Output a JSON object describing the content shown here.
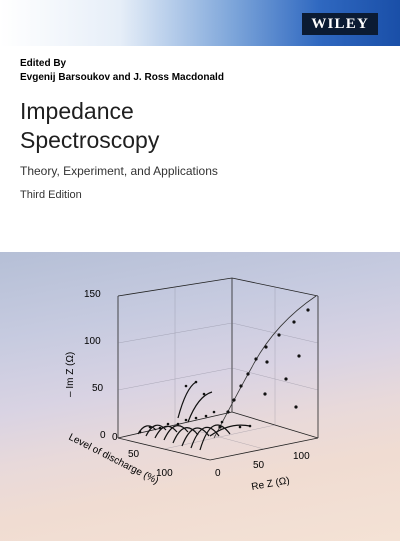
{
  "publisher": {
    "logo_text": "WILEY"
  },
  "editors": {
    "label": "Edited By",
    "names": "Evgenij Barsoukov and J. Ross Macdonald"
  },
  "book": {
    "title_line1": "Impedance",
    "title_line2": "Spectroscopy",
    "subtitle": "Theory, Experiment, and Applications",
    "edition": "Third Edition"
  },
  "colors": {
    "banner_dark": "#1a4fa8",
    "logo_bg": "#0b1b33",
    "title_text": "#1f1f1f"
  },
  "figure": {
    "z_axis_label": "– Im Z (Ω)",
    "x_axis_label": "Re Z (Ω)",
    "y_axis_label": "Level of discharge (%)",
    "z_ticks": [
      "150",
      "100",
      "50",
      "0"
    ],
    "x_ticks": [
      "0",
      "50",
      "100"
    ],
    "y_ticks": [
      "0",
      "50",
      "100"
    ]
  }
}
